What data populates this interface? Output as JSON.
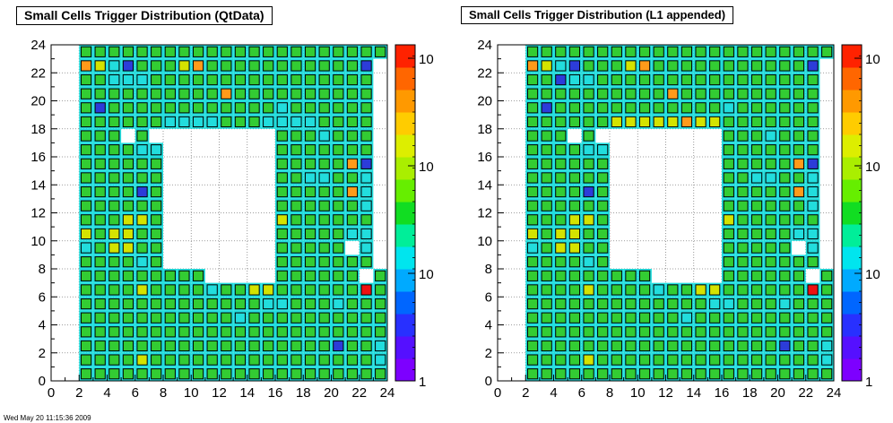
{
  "footer_text": "Wed May 20 11:15:36 2009",
  "colors": {
    "background": "#ffffff",
    "grid": "#808080",
    "cell_border": "#000000"
  },
  "chart_data": [
    {
      "type": "heatmap",
      "title": "Small Cells Trigger Distribution (QtData)",
      "xlim": [
        0,
        24
      ],
      "ylim": [
        0,
        24
      ],
      "x_ticks": [
        "0",
        "2",
        "4",
        "6",
        "8",
        "10",
        "12",
        "14",
        "16",
        "18",
        "20",
        "22",
        "24"
      ],
      "y_ticks": [
        "0",
        "2",
        "4",
        "6",
        "8",
        "10",
        "12",
        "14",
        "16",
        "18",
        "20",
        "22",
        "24"
      ],
      "z_scale": "log",
      "colorbar_ticks": [
        {
          "label": "1",
          "level": 0.0
        },
        {
          "label": "10",
          "level": 0.32
        },
        {
          "label": "10",
          "level": 0.64
        },
        {
          "label": "10",
          "level": 0.96
        }
      ],
      "grid": true,
      "rows": [
        "........................",
        "..GGGGGGGGGGGGGGGGGGGGGG",
        "..OYCBGGGYOGGGGGGGGGGGB.",
        "..GGCCCGGGGGGGGGGGGGGGG.",
        "..GGGGGGGGGGOGGGGGGGGGG.",
        "..GBGGGGGGGGGGGGCGGGGGG.",
        "..GGGGGGCCCCGGGCCCCGGGG.",
        "..GGG.G.........GGGCGGG.",
        "..GGGGCC........GGGGGGG.",
        "..GGGGGG........GGGGGOB.",
        "..GGGGGG........GGCCGGC.",
        "..GGGGBG........GGGGGOC.",
        "..GGGGGG........GGGGGGC.",
        "..GGGYYG........YGGGGGG.",
        "..YGYYGG........GGGGGCC.",
        "..CGYYGG........GGGGG.C.",
        "..GGGGCG........GGGGGGG.",
        "..GGGGGGGGG.....GGGGGG.G",
        "..GGGGYGGGGCGGYYGGGGGGRG",
        "..GGGGGGGGGGGGGCCGGGCGGG",
        "..GGGGGGGGGGGCGGGGGGGGGG",
        "..GGGGGGGGGGGGGGGGGGGGGG",
        "..GGGGGGGGGGGGGGGGGGBGGC",
        "..GGGGYGGGGGGGGGGGGGGGGC",
        "..GGGGGGGGGGGGGGGGGGGGGG"
      ]
    },
    {
      "type": "heatmap",
      "title": "Small Cells Trigger Distribution (L1 appended)",
      "xlim": [
        0,
        24
      ],
      "ylim": [
        0,
        24
      ],
      "x_ticks": [
        "0",
        "2",
        "4",
        "6",
        "8",
        "10",
        "12",
        "14",
        "16",
        "18",
        "20",
        "22",
        "24"
      ],
      "y_ticks": [
        "0",
        "2",
        "4",
        "6",
        "8",
        "10",
        "12",
        "14",
        "16",
        "18",
        "20",
        "22",
        "24"
      ],
      "z_scale": "log",
      "colorbar_ticks": [
        {
          "label": "1",
          "level": 0.0
        },
        {
          "label": "10",
          "level": 0.32
        },
        {
          "label": "10",
          "level": 0.64
        },
        {
          "label": "10",
          "level": 0.96
        }
      ],
      "grid": true,
      "rows": [
        "........................",
        "..GGGGGGGGGGGGGGGGGGGGGG",
        "..OYCBGGGYOGGGGGGGGGGGB.",
        "..GGBCCGGGGGGGGGGGGGGGG.",
        "..GGGGGGGGGGOGGGGGGGGGG.",
        "..GBGGGGGGGGGGGGCGGGGGG.",
        "..GGGGGGYYYYYOYYGGGGGGG.",
        "..GGG.G.........GGGCGGG.",
        "..GGGGCC........GGGGGGG.",
        "..GGGGGG........GGGGGOB.",
        "..GGGGGG........GGCCGGC.",
        "..GGGGBG........GGGGGOC.",
        "..GGGGGG........GGGGGGC.",
        "..GGGYYG........YGGGGGG.",
        "..YGYYGG........GGGGGCC.",
        "..CGYYGG........GGGGG.C.",
        "..GGGGCG........GGGGGGG.",
        "..GGGGGGGGG.....GGGGGG.G",
        "..GGGGYGGGGCGGYYGGGGGGRG",
        "..GGGGGGGGGGGGGCCGGGCGGG",
        "..GGGGGGGGGGGCGGGGGGGGGG",
        "..GGGGGGGGGGGGGGGGGGGGGG",
        "..GGGGGGGGGGGGGGGGGGBGGC",
        "..GGGGYGGGGGGGGGGGGGGGGC",
        "..GGGGGGGGGGGGGGGGGGGGGG"
      ]
    }
  ]
}
